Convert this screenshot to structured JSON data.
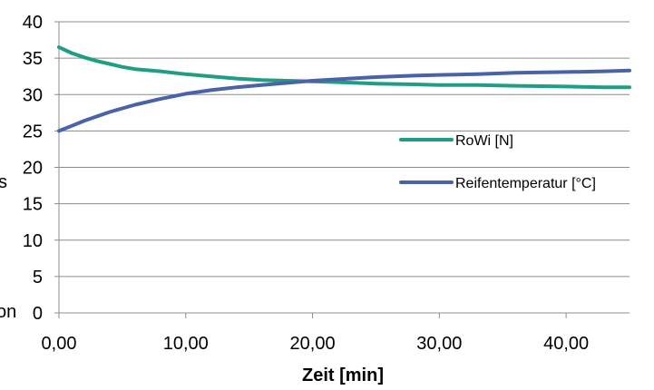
{
  "chart_data": {
    "type": "line",
    "xlabel": "Zeit [min]",
    "ylabel": "",
    "xlim": [
      0,
      45
    ],
    "ylim": [
      0,
      40
    ],
    "x_ticks": [
      "0,00",
      "10,00",
      "20,00",
      "30,00",
      "40,00"
    ],
    "y_ticks": [
      "0",
      "5",
      "10",
      "15",
      "20",
      "25",
      "30",
      "35",
      "40"
    ],
    "grid": "horizontal",
    "legend_position": "right",
    "clipped_fragments": [
      "s",
      "on"
    ],
    "series": [
      {
        "name": "RoWi [N]",
        "color": "#1f9e84",
        "x": [
          0,
          1,
          2,
          3,
          4,
          5,
          6,
          8,
          10,
          12,
          14,
          16,
          18,
          20,
          22,
          25,
          28,
          30,
          33,
          36,
          40,
          43,
          45
        ],
        "y": [
          36.5,
          35.7,
          35.1,
          34.6,
          34.2,
          33.8,
          33.5,
          33.2,
          32.8,
          32.5,
          32.2,
          32.0,
          31.9,
          31.8,
          31.7,
          31.5,
          31.4,
          31.3,
          31.3,
          31.2,
          31.1,
          31.0,
          31.0
        ]
      },
      {
        "name": "Reifentemperatur [°C]",
        "color": "#4a63a8",
        "x": [
          0,
          1,
          2,
          3,
          4,
          5,
          6,
          8,
          10,
          12,
          14,
          16,
          18,
          20,
          22,
          25,
          28,
          30,
          33,
          36,
          40,
          43,
          45
        ],
        "y": [
          25.0,
          25.7,
          26.4,
          27.0,
          27.6,
          28.1,
          28.6,
          29.4,
          30.1,
          30.6,
          31.0,
          31.3,
          31.6,
          31.9,
          32.1,
          32.4,
          32.6,
          32.7,
          32.8,
          33.0,
          33.1,
          33.2,
          33.3
        ]
      }
    ]
  }
}
